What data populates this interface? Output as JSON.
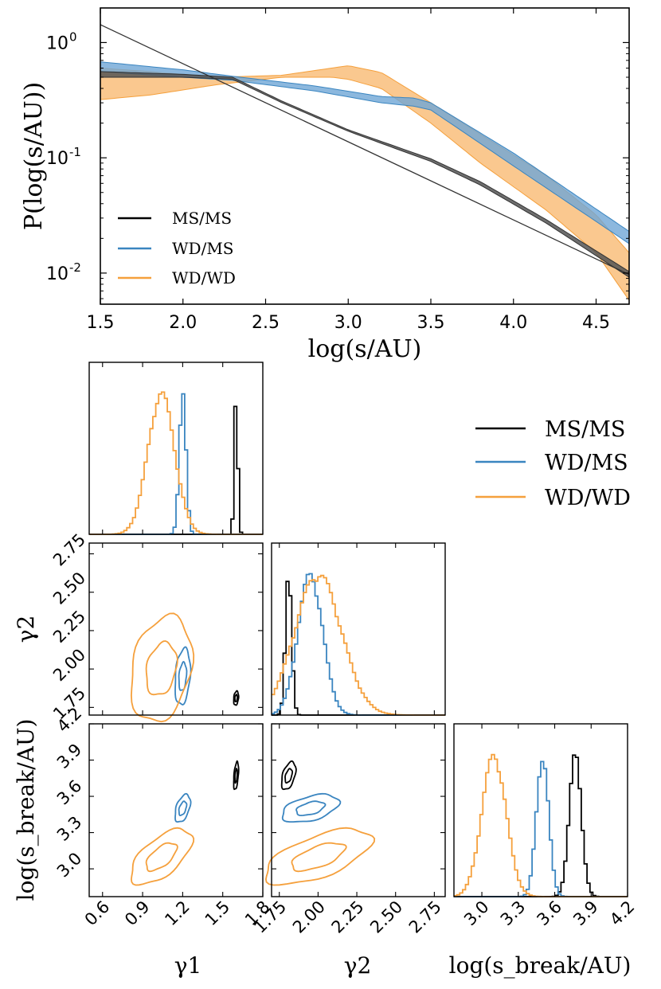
{
  "colors": {
    "MS/MS": "#000000",
    "WD/MS": "#3a85c0",
    "WD/WD": "#f5a03c",
    "WD/MS_fill": "#6fa6d6",
    "WD/WD_fill": "#f8b569"
  },
  "chart_data": [
    {
      "type": "area",
      "title": "",
      "xlabel": "log(s/AU)",
      "ylabel": "P(log(s/AU))",
      "xlim": [
        1.5,
        4.7
      ],
      "ylim_log10": [
        -2.27,
        0.3
      ],
      "yscale": "log",
      "xticks": [
        1.5,
        2.0,
        2.5,
        3.0,
        3.5,
        4.0,
        4.5
      ],
      "xtick_labels": [
        "1.5",
        "2.0",
        "2.5",
        "3.0",
        "3.5",
        "4.0",
        "4.5"
      ],
      "yticks_log10": [
        0,
        -1,
        -2
      ],
      "ytick_labels": [
        "10^0",
        "10^-1",
        "10^-2"
      ],
      "legend_position": "bottom-left",
      "series": [
        {
          "name": "MS/MS",
          "kind": "line",
          "x": [
            1.5,
            2.0,
            2.3,
            2.6,
            3.0,
            3.5,
            3.8,
            4.2,
            4.7
          ],
          "y_lo": [
            0.5,
            0.5,
            0.48,
            0.3,
            0.17,
            0.093,
            0.058,
            0.027,
            0.0092
          ],
          "y_hi": [
            0.56,
            0.53,
            0.5,
            0.31,
            0.175,
            0.098,
            0.062,
            0.029,
            0.0103
          ]
        },
        {
          "name": "MS/MS model",
          "kind": "thin-line",
          "x": [
            1.5,
            4.7
          ],
          "y": [
            1.43,
            0.0097
          ]
        },
        {
          "name": "WD/MS",
          "kind": "band",
          "x": [
            1.5,
            2.0,
            2.3,
            2.8,
            3.2,
            3.4,
            3.5,
            4.0,
            4.4,
            4.7
          ],
          "y_lo": [
            0.56,
            0.5,
            0.47,
            0.38,
            0.3,
            0.28,
            0.26,
            0.085,
            0.035,
            0.018
          ],
          "y_hi": [
            0.68,
            0.58,
            0.51,
            0.42,
            0.34,
            0.33,
            0.3,
            0.11,
            0.045,
            0.023
          ]
        },
        {
          "name": "WD/WD",
          "kind": "band",
          "x": [
            1.5,
            1.8,
            2.2,
            2.6,
            2.9,
            3.0,
            3.2,
            3.5,
            3.8,
            4.2,
            4.5,
            4.7
          ],
          "y_lo": [
            0.32,
            0.35,
            0.43,
            0.5,
            0.5,
            0.48,
            0.4,
            0.2,
            0.09,
            0.035,
            0.015,
            0.0058
          ],
          "y_hi": [
            0.6,
            0.56,
            0.5,
            0.52,
            0.6,
            0.63,
            0.55,
            0.3,
            0.16,
            0.07,
            0.032,
            0.015
          ]
        }
      ]
    },
    {
      "type": "corner",
      "parameters": [
        "gamma_1",
        "gamma_2",
        "log(s_break/AU)"
      ],
      "axis_labels": [
        "γ1",
        "γ2",
        "log(s_break/AU)"
      ],
      "ranges": [
        [
          0.5,
          1.8
        ],
        [
          1.7,
          2.82
        ],
        [
          2.77,
          4.2
        ]
      ],
      "ticks": {
        "gamma_1": [
          "0.6",
          "0.9",
          "1.2",
          "1.5",
          "1.8"
        ],
        "gamma_2": [
          "1.75",
          "2.00",
          "2.25",
          "2.50",
          "2.75"
        ],
        "log_s_break": [
          "3.0",
          "3.3",
          "3.6",
          "3.9",
          "4.2"
        ]
      },
      "legend_position": "upper-right",
      "series": [
        {
          "name": "MS/MS",
          "gamma_1": {
            "mean": 1.6,
            "sd": 0.008
          },
          "gamma_2": {
            "mean": 1.81,
            "sd": 0.02
          },
          "log_s_break": {
            "mean": 3.77,
            "sd": 0.05
          }
        },
        {
          "name": "WD/MS",
          "gamma_1": {
            "mean": 1.2,
            "sd": 0.025
          },
          "gamma_2": {
            "mean": 1.95,
            "sd": 0.08
          },
          "log_s_break": {
            "mean": 3.5,
            "sd": 0.05
          }
        },
        {
          "name": "WD/WD",
          "gamma_1": {
            "mean": 1.04,
            "sd": 0.1
          },
          "gamma_2": {
            "mean": 2.0,
            "sd": 0.15
          },
          "log_s_break": {
            "mean": 3.1,
            "sd": 0.1
          }
        }
      ]
    }
  ],
  "legend_top": {
    "entries": [
      "MS/MS",
      "WD/MS",
      "WD/WD"
    ]
  },
  "legend_corner": {
    "entries": [
      "MS/MS",
      "WD/MS",
      "WD/WD"
    ]
  }
}
